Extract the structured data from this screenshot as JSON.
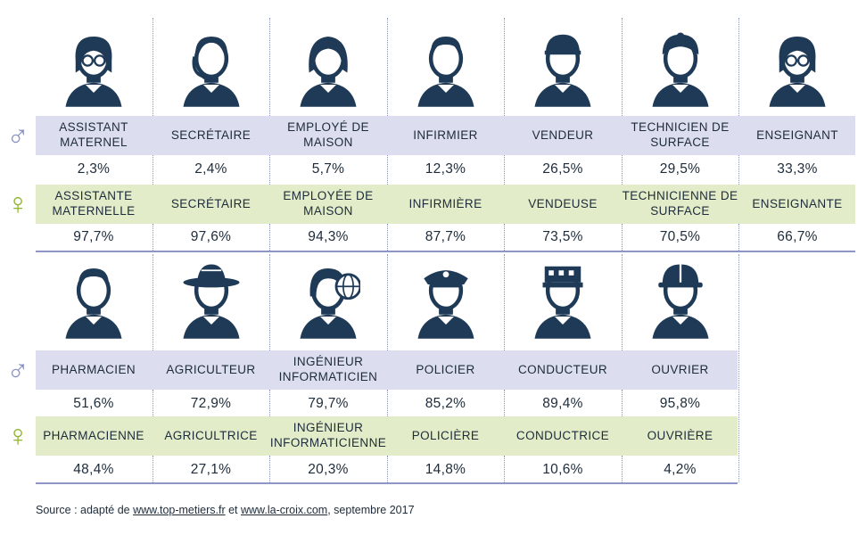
{
  "chart_data": {
    "type": "table",
    "rows": [
      {
        "professions": [
          {
            "male_label": "ASSISTANT MATERNEL",
            "male_pct": "2,3%",
            "female_label": "ASSISTANTE MATERNELLE",
            "female_pct": "97,7%",
            "icon": "woman-glasses-icon",
            "male": 2.3,
            "female": 97.7
          },
          {
            "male_label": "SECRÉTAIRE",
            "male_pct": "2,4%",
            "female_label": "SECRÉTAIRE",
            "female_pct": "97,6%",
            "icon": "headset-icon",
            "male": 2.4,
            "female": 97.6
          },
          {
            "male_label": "EMPLOYÉ DE MAISON",
            "male_pct": "5,7%",
            "female_label": "EMPLOYÉE DE MAISON",
            "female_pct": "94,3%",
            "icon": "woman-icon",
            "male": 5.7,
            "female": 94.3
          },
          {
            "male_label": "INFIRMIER",
            "male_pct": "12,3%",
            "female_label": "INFIRMIÈRE",
            "female_pct": "87,7%",
            "icon": "nurse-icon",
            "male": 12.3,
            "female": 87.7
          },
          {
            "male_label": "VENDEUR",
            "male_pct": "26,5%",
            "female_label": "VENDEUSE",
            "female_pct": "73,5%",
            "icon": "cap-icon",
            "male": 26.5,
            "female": 73.5
          },
          {
            "male_label": "TECHNICIEN DE SURFACE",
            "male_pct": "29,5%",
            "female_label": "TECHNICIENNE DE SURFACE",
            "female_pct": "70,5%",
            "icon": "headscarf-icon",
            "male": 29.5,
            "female": 70.5
          },
          {
            "male_label": "ENSEIGNANT",
            "male_pct": "33,3%",
            "female_label": "ENSEIGNANTE",
            "female_pct": "66,7%",
            "icon": "teacher-icon",
            "male": 33.3,
            "female": 66.7
          }
        ]
      },
      {
        "professions": [
          {
            "male_label": "PHARMACIEN",
            "male_pct": "51,6%",
            "female_label": "PHARMACIENNE",
            "female_pct": "48,4%",
            "icon": "pharmacist-icon",
            "male": 51.6,
            "female": 48.4
          },
          {
            "male_label": "AGRICULTEUR",
            "male_pct": "72,9%",
            "female_label": "AGRICULTRICE",
            "female_pct": "27,1%",
            "icon": "straw-hat-icon",
            "male": 72.9,
            "female": 27.1
          },
          {
            "male_label": "INGÉNIEUR INFORMATICIEN",
            "male_pct": "79,7%",
            "female_label": "INGÉNIEUR INFORMATICIENNE",
            "female_pct": "20,3%",
            "icon": "globe-engineer-icon",
            "male": 79.7,
            "female": 20.3
          },
          {
            "male_label": "POLICIER",
            "male_pct": "85,2%",
            "female_label": "POLICIÈRE",
            "female_pct": "14,8%",
            "icon": "police-icon",
            "male": 85.2,
            "female": 14.8
          },
          {
            "male_label": "CONDUCTEUR",
            "male_pct": "89,4%",
            "female_label": "CONDUCTRICE",
            "female_pct": "10,6%",
            "icon": "driver-cap-icon",
            "male": 89.4,
            "female": 10.6
          },
          {
            "male_label": "OUVRIER",
            "male_pct": "95,8%",
            "female_label": "OUVRIÈRE",
            "female_pct": "4,2%",
            "icon": "hardhat-icon",
            "male": 95.8,
            "female": 4.2
          }
        ]
      }
    ],
    "male_symbol": "♂",
    "female_symbol": "♀",
    "colors": {
      "male_band": "#dcdeef",
      "female_band": "#e3ecc9",
      "male_symbol": "#8791c4",
      "female_symbol": "#8fb530",
      "icon": "#1f3a56",
      "rule": "#8e96c8"
    }
  },
  "source": {
    "prefix": "Source : adapté de ",
    "link1": "www.top-metiers.fr",
    "middle": " et ",
    "link2": "www.la-croix.com",
    "suffix": ", septembre 2017"
  }
}
